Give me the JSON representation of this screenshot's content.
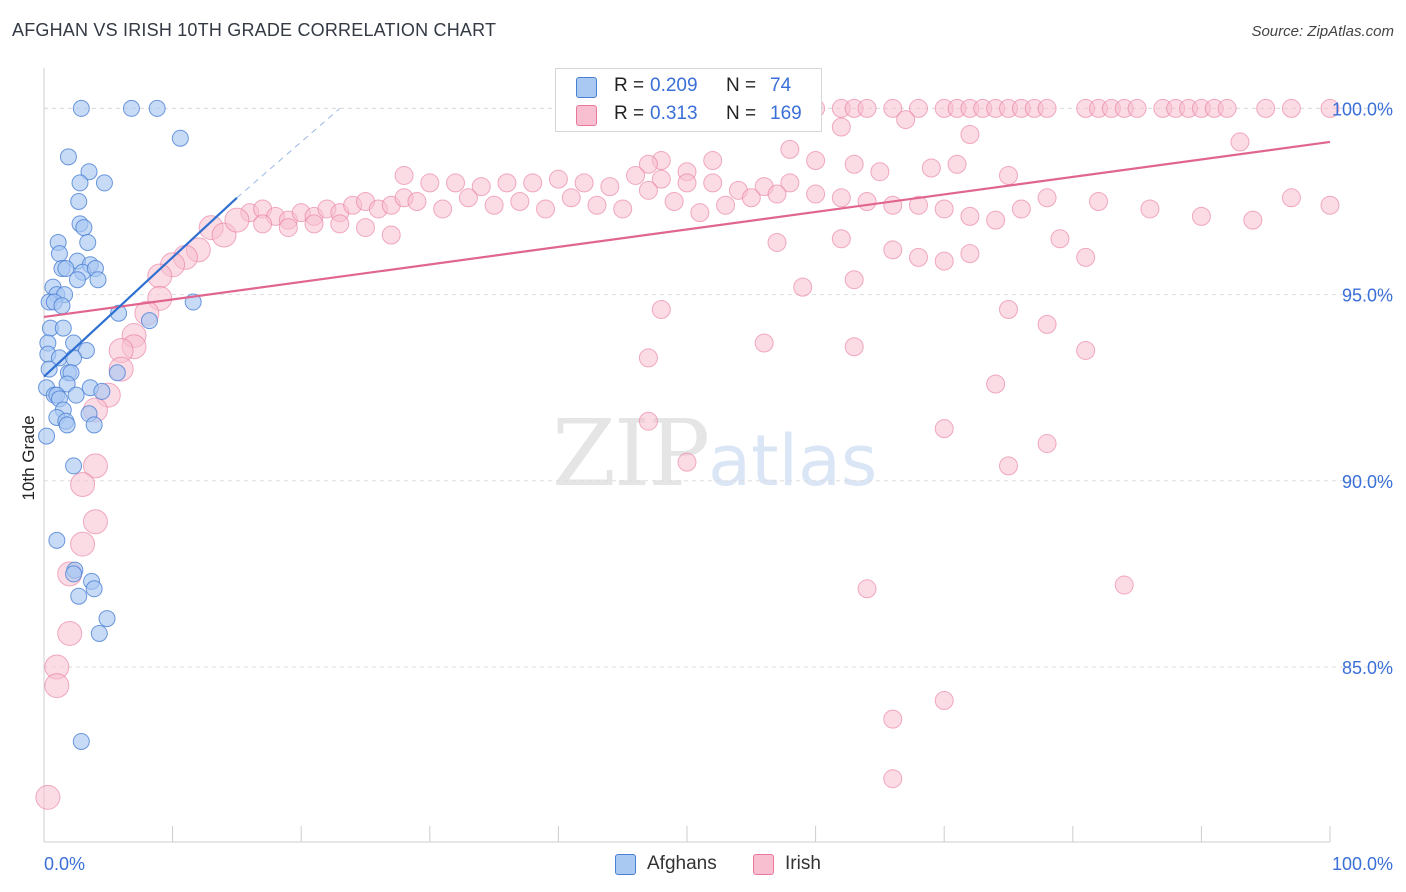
{
  "title": "AFGHAN VS IRISH 10TH GRADE CORRELATION CHART",
  "source": "Source: ZipAtlas.com",
  "watermark": {
    "zip": "ZIP",
    "atlas": "atlas"
  },
  "legend_box": {
    "afghans": {
      "r_label": "R =",
      "r_value": "0.209",
      "n_label": "N =",
      "n_value": "74"
    },
    "irish": {
      "r_label": "R =",
      "r_value": "0.313",
      "n_label": "N =",
      "n_value": "169"
    }
  },
  "bottom_legend": {
    "afghans": "Afghans",
    "irish": "Irish"
  },
  "colors": {
    "afghans_fill": "#a9c8f2",
    "afghans_stroke": "#4a80d4",
    "afghans_line": "#2f6fd0",
    "irish_fill": "#f7bfd0",
    "irish_stroke": "#e8789c",
    "irish_line": "#e0668f",
    "tick_label": "#3a6fd8",
    "grid": "#dddddd"
  },
  "chart_data": {
    "type": "scatter",
    "title": "AFGHAN VS IRISH 10TH GRADE CORRELATION CHART",
    "xlabel": "",
    "ylabel": "10th Grade",
    "xlim": [
      0,
      100
    ],
    "ylim": [
      80.3,
      101.3
    ],
    "x_tick_labels": [
      {
        "value": 0,
        "label": "0.0%"
      },
      {
        "value": 100,
        "label": "100.0%"
      }
    ],
    "y_tick_labels": [
      {
        "value": 100,
        "label": "100.0%"
      },
      {
        "value": 95,
        "label": "95.0%"
      },
      {
        "value": 90,
        "label": "90.0%"
      },
      {
        "value": 85,
        "label": "85.0%"
      }
    ],
    "series": [
      {
        "name": "Afghans",
        "r": 0.209,
        "n": 74,
        "trend": {
          "x": [
            0,
            15
          ],
          "y": [
            92.8,
            97.6
          ],
          "dashed_to": {
            "x": 23,
            "y": 100.0
          }
        },
        "points": [
          [
            2.9,
            100
          ],
          [
            6.8,
            100
          ],
          [
            8.8,
            100
          ],
          [
            10.6,
            99.2
          ],
          [
            1.9,
            98.7
          ],
          [
            3.5,
            98.3
          ],
          [
            2.8,
            98.0
          ],
          [
            4.7,
            98.0
          ],
          [
            2.7,
            97.5
          ],
          [
            2.8,
            96.9
          ],
          [
            3.1,
            96.8
          ],
          [
            1.1,
            96.4
          ],
          [
            3.4,
            96.4
          ],
          [
            1.2,
            96.1
          ],
          [
            2.6,
            95.9
          ],
          [
            3.6,
            95.8
          ],
          [
            1.4,
            95.7
          ],
          [
            1.7,
            95.7
          ],
          [
            3.0,
            95.6
          ],
          [
            4.0,
            95.7
          ],
          [
            2.6,
            95.4
          ],
          [
            4.2,
            95.4
          ],
          [
            0.7,
            95.2
          ],
          [
            1.0,
            95.0
          ],
          [
            1.6,
            95.0
          ],
          [
            0.4,
            94.8
          ],
          [
            0.8,
            94.8
          ],
          [
            1.4,
            94.7
          ],
          [
            11.6,
            94.8
          ],
          [
            5.8,
            94.5
          ],
          [
            8.2,
            94.3
          ],
          [
            0.5,
            94.1
          ],
          [
            1.5,
            94.1
          ],
          [
            0.3,
            93.7
          ],
          [
            2.3,
            93.7
          ],
          [
            3.3,
            93.5
          ],
          [
            0.3,
            93.4
          ],
          [
            1.2,
            93.3
          ],
          [
            2.3,
            93.3
          ],
          [
            0.4,
            93.0
          ],
          [
            1.9,
            92.9
          ],
          [
            2.1,
            92.9
          ],
          [
            5.7,
            92.9
          ],
          [
            1.8,
            92.6
          ],
          [
            0.2,
            92.5
          ],
          [
            3.6,
            92.5
          ],
          [
            4.5,
            92.4
          ],
          [
            0.8,
            92.3
          ],
          [
            1.0,
            92.3
          ],
          [
            2.5,
            92.3
          ],
          [
            1.2,
            92.2
          ],
          [
            1.5,
            91.9
          ],
          [
            3.5,
            91.8
          ],
          [
            1.0,
            91.7
          ],
          [
            1.7,
            91.6
          ],
          [
            1.8,
            91.5
          ],
          [
            3.9,
            91.5
          ],
          [
            0.2,
            91.2
          ],
          [
            2.3,
            90.4
          ],
          [
            1.0,
            88.4
          ],
          [
            2.4,
            87.6
          ],
          [
            2.3,
            87.5
          ],
          [
            3.7,
            87.3
          ],
          [
            3.9,
            87.1
          ],
          [
            2.7,
            86.9
          ],
          [
            4.9,
            86.3
          ],
          [
            4.3,
            85.9
          ],
          [
            2.9,
            83.0
          ]
        ]
      },
      {
        "name": "Irish",
        "r": 0.313,
        "n": 169,
        "trend": {
          "x": [
            0,
            100
          ],
          "y": [
            94.4,
            99.1
          ]
        },
        "points": [
          [
            60,
            100
          ],
          [
            62,
            100
          ],
          [
            63,
            100
          ],
          [
            64,
            100
          ],
          [
            66,
            100
          ],
          [
            68,
            100
          ],
          [
            70,
            100
          ],
          [
            71,
            100
          ],
          [
            72,
            100
          ],
          [
            73,
            100
          ],
          [
            74,
            100
          ],
          [
            75,
            100
          ],
          [
            76,
            100
          ],
          [
            77,
            100
          ],
          [
            78,
            100
          ],
          [
            81,
            100
          ],
          [
            82,
            100
          ],
          [
            83,
            100
          ],
          [
            84,
            100
          ],
          [
            85,
            100
          ],
          [
            87,
            100
          ],
          [
            88,
            100
          ],
          [
            89,
            100
          ],
          [
            90,
            100
          ],
          [
            91,
            100
          ],
          [
            92,
            100
          ],
          [
            95,
            100
          ],
          [
            97,
            100
          ],
          [
            100,
            100
          ],
          [
            62,
            99.5
          ],
          [
            67,
            99.7
          ],
          [
            72,
            99.3
          ],
          [
            58,
            98.9
          ],
          [
            48,
            98.6
          ],
          [
            52,
            98.6
          ],
          [
            93,
            99.1
          ],
          [
            47,
            98.5
          ],
          [
            50,
            98.3
          ],
          [
            60,
            98.6
          ],
          [
            63,
            98.5
          ],
          [
            65,
            98.3
          ],
          [
            69,
            98.4
          ],
          [
            71,
            98.5
          ],
          [
            75,
            98.2
          ],
          [
            28,
            98.2
          ],
          [
            30,
            98.0
          ],
          [
            32,
            98.0
          ],
          [
            34,
            97.9
          ],
          [
            36,
            98.0
          ],
          [
            38,
            98.0
          ],
          [
            40,
            98.1
          ],
          [
            42,
            98.0
          ],
          [
            44,
            97.9
          ],
          [
            46,
            98.2
          ],
          [
            48,
            98.1
          ],
          [
            50,
            98.0
          ],
          [
            52,
            98.0
          ],
          [
            54,
            97.8
          ],
          [
            56,
            97.9
          ],
          [
            58,
            98.0
          ],
          [
            60,
            97.7
          ],
          [
            62,
            97.6
          ],
          [
            64,
            97.5
          ],
          [
            66,
            97.4
          ],
          [
            68,
            97.4
          ],
          [
            70,
            97.3
          ],
          [
            72,
            97.1
          ],
          [
            74,
            97.0
          ],
          [
            76,
            97.3
          ],
          [
            78,
            97.6
          ],
          [
            82,
            97.5
          ],
          [
            86,
            97.3
          ],
          [
            90,
            97.1
          ],
          [
            94,
            97.0
          ],
          [
            97,
            97.6
          ],
          [
            100,
            97.4
          ],
          [
            16,
            97.2
          ],
          [
            17,
            97.3
          ],
          [
            18,
            97.1
          ],
          [
            19,
            97.0
          ],
          [
            20,
            97.2
          ],
          [
            21,
            97.1
          ],
          [
            22,
            97.3
          ],
          [
            23,
            97.2
          ],
          [
            24,
            97.4
          ],
          [
            25,
            97.5
          ],
          [
            26,
            97.3
          ],
          [
            27,
            97.4
          ],
          [
            28,
            97.6
          ],
          [
            29,
            97.5
          ],
          [
            31,
            97.3
          ],
          [
            33,
            97.6
          ],
          [
            35,
            97.4
          ],
          [
            37,
            97.5
          ],
          [
            39,
            97.3
          ],
          [
            41,
            97.6
          ],
          [
            43,
            97.4
          ],
          [
            45,
            97.3
          ],
          [
            47,
            97.8
          ],
          [
            49,
            97.5
          ],
          [
            51,
            97.2
          ],
          [
            53,
            97.4
          ],
          [
            55,
            97.6
          ],
          [
            57,
            97.7
          ],
          [
            13,
            96.8
          ],
          [
            14,
            96.6
          ],
          [
            15,
            97.0
          ],
          [
            17,
            96.9
          ],
          [
            19,
            96.8
          ],
          [
            21,
            96.9
          ],
          [
            23,
            96.9
          ],
          [
            25,
            96.8
          ],
          [
            27,
            96.6
          ],
          [
            12,
            96.2
          ],
          [
            11,
            96.0
          ],
          [
            10,
            95.8
          ],
          [
            9,
            95.5
          ],
          [
            57,
            96.4
          ],
          [
            62,
            96.5
          ],
          [
            66,
            96.2
          ],
          [
            68,
            96.0
          ],
          [
            70,
            95.9
          ],
          [
            72,
            96.1
          ],
          [
            79,
            96.5
          ],
          [
            81,
            96.0
          ],
          [
            63,
            95.4
          ],
          [
            59,
            95.2
          ],
          [
            9,
            94.9
          ],
          [
            8,
            94.5
          ],
          [
            7,
            93.9
          ],
          [
            7,
            93.6
          ],
          [
            6,
            93.5
          ],
          [
            6,
            93.0
          ],
          [
            5,
            92.3
          ],
          [
            4,
            91.9
          ],
          [
            75,
            94.6
          ],
          [
            48,
            94.6
          ],
          [
            78,
            94.2
          ],
          [
            56,
            93.7
          ],
          [
            63,
            93.6
          ],
          [
            47,
            93.3
          ],
          [
            81,
            93.5
          ],
          [
            74,
            92.6
          ],
          [
            47,
            91.6
          ],
          [
            70,
            91.4
          ],
          [
            78,
            91.0
          ],
          [
            4,
            90.4
          ],
          [
            3,
            89.9
          ],
          [
            50,
            90.5
          ],
          [
            75,
            90.4
          ],
          [
            4,
            88.9
          ],
          [
            3,
            88.3
          ],
          [
            2,
            87.5
          ],
          [
            64,
            87.1
          ],
          [
            84,
            87.2
          ],
          [
            2,
            85.9
          ],
          [
            1,
            85.0
          ],
          [
            1,
            84.5
          ],
          [
            70,
            84.1
          ],
          [
            66,
            83.6
          ],
          [
            66,
            82.0
          ],
          [
            0.3,
            81.5
          ]
        ]
      }
    ]
  }
}
